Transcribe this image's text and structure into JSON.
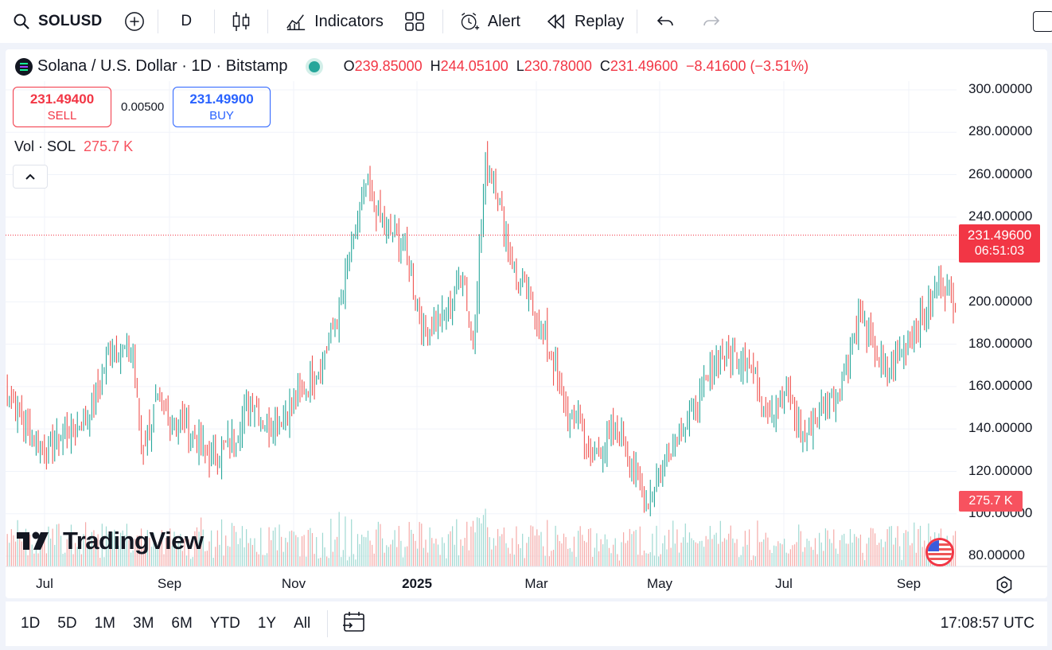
{
  "toolbar": {
    "symbol": "SOLUSD",
    "interval": "D",
    "indicators_label": "Indicators",
    "alert_label": "Alert",
    "replay_label": "Replay"
  },
  "legend": {
    "title": "Solana / U.S. Dollar · 1D · Bitstamp",
    "open_key": "O",
    "open": "239.85000",
    "high_key": "H",
    "high": "244.05100",
    "low_key": "L",
    "low": "230.78000",
    "close_key": "C",
    "close": "231.49600",
    "change": "−8.41600 (−3.51%)"
  },
  "trade": {
    "sell_price": "231.49400",
    "sell_label": "SELL",
    "spread": "0.00500",
    "buy_price": "231.49900",
    "buy_label": "BUY"
  },
  "volume": {
    "label": "Vol · SOL",
    "value": "275.7 K"
  },
  "price_tag": {
    "price": "231.49600",
    "countdown": "06:51:03"
  },
  "y_axis": [
    "300.00000",
    "280.00000",
    "260.00000",
    "240.00000",
    "220.00000",
    "200.00000",
    "180.00000",
    "160.00000",
    "140.00000",
    "120.00000",
    "100.00000",
    "80.00000"
  ],
  "x_axis": [
    "Jul",
    "Sep",
    "Nov",
    "2025",
    "Mar",
    "May",
    "Jul",
    "Sep"
  ],
  "logo_text": "TradingView",
  "ranges": [
    "1D",
    "5D",
    "1M",
    "3M",
    "6M",
    "YTD",
    "1Y",
    "All"
  ],
  "clock": "17:08:57 UTC",
  "colors": {
    "up": "#26a69a",
    "down": "#ef5350",
    "accent_red": "#f23645",
    "accent_blue": "#2962ff"
  },
  "chart_data": {
    "type": "candlestick",
    "symbol": "SOLUSD",
    "interval": "1D",
    "ylim": [
      80,
      300
    ],
    "last_close": 231.496,
    "anchors": [
      {
        "date": "2024-06-01",
        "price": 160
      },
      {
        "date": "2024-06-10",
        "price": 140
      },
      {
        "date": "2024-06-20",
        "price": 130
      },
      {
        "date": "2024-07-01",
        "price": 140
      },
      {
        "date": "2024-07-10",
        "price": 145
      },
      {
        "date": "2024-07-22",
        "price": 180
      },
      {
        "date": "2024-08-01",
        "price": 175
      },
      {
        "date": "2024-08-05",
        "price": 130
      },
      {
        "date": "2024-08-12",
        "price": 150
      },
      {
        "date": "2024-08-22",
        "price": 145
      },
      {
        "date": "2024-09-01",
        "price": 135
      },
      {
        "date": "2024-09-08",
        "price": 125
      },
      {
        "date": "2024-09-18",
        "price": 135
      },
      {
        "date": "2024-09-28",
        "price": 155
      },
      {
        "date": "2024-10-05",
        "price": 140
      },
      {
        "date": "2024-10-20",
        "price": 155
      },
      {
        "date": "2024-10-31",
        "price": 170
      },
      {
        "date": "2024-11-10",
        "price": 200
      },
      {
        "date": "2024-11-22",
        "price": 255
      },
      {
        "date": "2024-12-01",
        "price": 235
      },
      {
        "date": "2024-12-10",
        "price": 230
      },
      {
        "date": "2024-12-20",
        "price": 185
      },
      {
        "date": "2024-12-31",
        "price": 195
      },
      {
        "date": "2025-01-08",
        "price": 215
      },
      {
        "date": "2025-01-13",
        "price": 180
      },
      {
        "date": "2025-01-19",
        "price": 265
      },
      {
        "date": "2025-01-24",
        "price": 255
      },
      {
        "date": "2025-02-03",
        "price": 210
      },
      {
        "date": "2025-02-10",
        "price": 200
      },
      {
        "date": "2025-02-20",
        "price": 175
      },
      {
        "date": "2025-03-01",
        "price": 140
      },
      {
        "date": "2025-03-05",
        "price": 150
      },
      {
        "date": "2025-03-10",
        "price": 125
      },
      {
        "date": "2025-03-25",
        "price": 140
      },
      {
        "date": "2025-04-07",
        "price": 105
      },
      {
        "date": "2025-04-20",
        "price": 135
      },
      {
        "date": "2025-05-01",
        "price": 150
      },
      {
        "date": "2025-05-12",
        "price": 175
      },
      {
        "date": "2025-05-24",
        "price": 175
      },
      {
        "date": "2025-06-05",
        "price": 150
      },
      {
        "date": "2025-06-15",
        "price": 155
      },
      {
        "date": "2025-06-22",
        "price": 135
      },
      {
        "date": "2025-07-01",
        "price": 150
      },
      {
        "date": "2025-07-10",
        "price": 160
      },
      {
        "date": "2025-07-20",
        "price": 195
      },
      {
        "date": "2025-08-01",
        "price": 165
      },
      {
        "date": "2025-08-10",
        "price": 180
      },
      {
        "date": "2025-08-20",
        "price": 195
      },
      {
        "date": "2025-08-28",
        "price": 210
      },
      {
        "date": "2025-09-05",
        "price": 200
      },
      {
        "date": "2025-09-10",
        "price": 225
      },
      {
        "date": "2025-09-14",
        "price": 245
      },
      {
        "date": "2025-09-16",
        "price": 231.496
      }
    ]
  }
}
